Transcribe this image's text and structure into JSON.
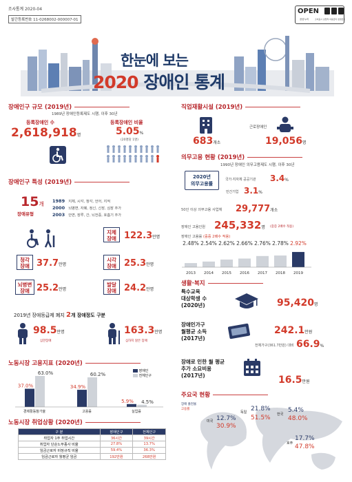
{
  "header": {
    "survey_label": "조사통계 2020-04",
    "publication_number": "발간등록번호 11-0268002-000007-01",
    "open_badge": "OPEN",
    "open_sub": "공공누리",
    "open_sub2": "출처표시 상업적 이용금지 변경금지"
  },
  "title": {
    "line1": "한눈에 보는",
    "year": "2020",
    "line2": "장애인 통계"
  },
  "population": {
    "title": "장애인구 규모 (2019년)",
    "subtitle": "1989년 장애인등록제도 시행, 이후 30년",
    "registered_label": "등록장애인 수",
    "registered_value": "2,618,918",
    "registered_unit": "명",
    "ratio_label": "등록장애인 비율",
    "ratio_value": "5.05",
    "ratio_unit": "%",
    "ratio_note": "(20명당 1명)"
  },
  "characteristics": {
    "title": "장애인구 특성 (2019년)",
    "types_value": "15",
    "types_unit": "개",
    "types_label": "장애유형",
    "history": [
      {
        "year": "1989",
        "text": "지체, 시각, 청각, 언어, 지적"
      },
      {
        "year": "2000",
        "text": "뇌병변, 자폐, 정신, 신장, 심장 추가"
      },
      {
        "year": "2003",
        "text": "안면, 장루, 간, 뇌전증, 호흡기 추가"
      }
    ],
    "counts": [
      {
        "label": "지체\n장애",
        "value": "122.3",
        "unit": "만명"
      },
      {
        "label": "청각\n장애",
        "value": "37.7",
        "unit": "만명"
      },
      {
        "label": "시각\n장애",
        "value": "25.3",
        "unit": "만명"
      },
      {
        "label": "뇌병변\n장애",
        "value": "25.2",
        "unit": "만명"
      },
      {
        "label": "발달\n장애",
        "value": "24.2",
        "unit": "만명"
      }
    ],
    "grade_line_pre": "2019년 장애등급제 폐지",
    "grade_line_num": "2",
    "grade_line_post": "개 장애정도 구분",
    "severe_value": "98.5",
    "severe_unit": "만명",
    "severe_label": "심한장애",
    "mild_value": "163.3",
    "mild_unit": "만명",
    "mild_label": "심하지 않은 장애"
  },
  "labor": {
    "title": "노동시장 고용지표 (2020년)",
    "legend": [
      "장애인",
      "전체인구"
    ],
    "groups": [
      {
        "label": "경제활동참가율",
        "disabled": "37.0",
        "total": "63.0",
        "disabled_v": 37.0,
        "total_v": 63.0
      },
      {
        "label": "고용률",
        "disabled": "34.9",
        "total": "60.2",
        "disabled_v": 34.9,
        "total_v": 60.2
      },
      {
        "label": "실업률",
        "disabled": "5.9",
        "total": "4.5",
        "disabled_v": 5.9,
        "total_v": 4.5
      }
    ],
    "pct": "%"
  },
  "employment": {
    "title": "노동시장 취업상황 (2020년)",
    "headers": [
      "구 분",
      "장애인구",
      "전체인구"
    ],
    "rows": [
      [
        "취업자 1주 취업시간",
        "36시간",
        "39시간"
      ],
      [
        "취업자 단순노무종사 비율",
        "27.8%",
        "13.7%"
      ],
      [
        "임금근로자 비정규직 비율",
        "59.4%",
        "36.3%"
      ],
      [
        "임금근로자 월평균 임금",
        "192만원",
        "268만원"
      ]
    ]
  },
  "rehab": {
    "title": "직업재활시설 (2019년)",
    "facilities_value": "683",
    "facilities_unit": "개소",
    "workers_label": "근로장애인",
    "workers_value": "19,056",
    "workers_unit": "명"
  },
  "mandatory": {
    "title": "의무고용 현황 (2019년)",
    "subtitle": "1990년 장애인 의무고용제도 시행, 이후 30년",
    "badge_line1": "2020년",
    "badge_line2": "의무고용률",
    "public_label": "국가·지자체 공공기관",
    "public_value": "3.4",
    "private_label": "민간기업",
    "private_value": "3.1",
    "pct": "%",
    "workplaces_label": "50인 이상 의무고용 사업체",
    "workplaces_value": "29,777",
    "workplaces_unit": "개소",
    "employees_label": "장애인 고용인원",
    "employees_value": "245,332",
    "employees_unit": "명",
    "employees_note": "(중증 2배수 적용)",
    "rate_label": "장애인 고용률",
    "rate_note": "(중증 2배수 적용)"
  },
  "chart_data": {
    "type": "bar",
    "categories": [
      "2013",
      "2014",
      "2015",
      "2016",
      "2017",
      "2018",
      "2019"
    ],
    "values": [
      2.48,
      2.54,
      2.62,
      2.66,
      2.76,
      2.78,
      2.92
    ],
    "labels": [
      "2.48%",
      "2.54%",
      "2.62%",
      "2.66%",
      "2.76%",
      "2.78%",
      "2.92%"
    ],
    "highlight_color": "#2a3a66",
    "bar_color": "#2a3a66"
  },
  "welfare": {
    "title": "생활·복지",
    "special_ed_label": "특수교육\n대상학생 수\n(2020년)",
    "special_ed_value": "95,420",
    "special_ed_unit": "명",
    "income_label": "장애인가구\n월평균 소득\n(2017년)",
    "income_value": "242.1",
    "income_unit": "만원",
    "income_note": "전체가구(361.7만원) 대비",
    "income_pct": "66.9",
    "cost_label": "장애로 인한 월 평균\n추가 소요비용\n(2017년)",
    "cost_value": "16.5",
    "cost_unit": "만원",
    "pct": "%"
  },
  "countries": {
    "title": "주요국 현황",
    "legend1": "장애 출현율",
    "legend2": "고용률",
    "items": [
      {
        "name": "미국",
        "prev": "12.7%",
        "emp": "30.9%"
      },
      {
        "name": "독일",
        "prev": "21.8%",
        "emp": "51.5%"
      },
      {
        "name": "한국",
        "prev": "5.4%",
        "emp": "48.0%"
      },
      {
        "name": "호주",
        "prev": "17.7%",
        "emp": "47.8%"
      }
    ]
  }
}
